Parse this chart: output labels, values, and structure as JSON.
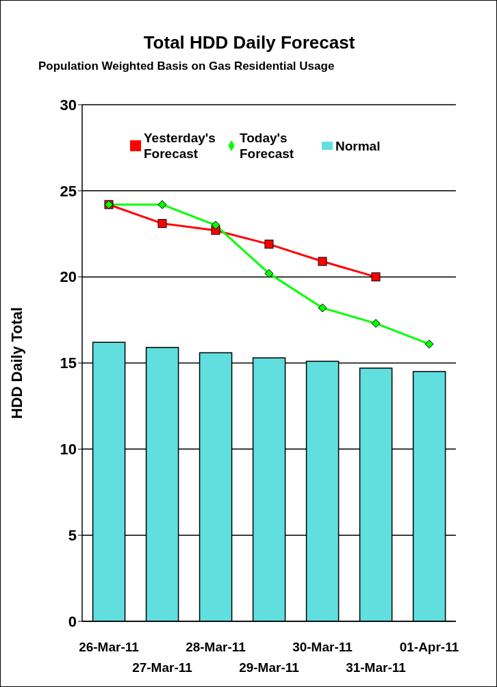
{
  "chart_data": {
    "type": "bar",
    "title": "Total HDD Daily Forecast",
    "subtitle": "Population Weighted Basis on Gas Residential Usage",
    "ylabel": "HDD Daily Total",
    "categories": [
      "26-Mar-11",
      "27-Mar-11",
      "28-Mar-11",
      "29-Mar-11",
      "30-Mar-11",
      "31-Mar-11",
      "01-Apr-11"
    ],
    "series": [
      {
        "name": "Yesterday's Forecast",
        "type": "line",
        "color": "#ff0000",
        "marker": "square",
        "values": [
          24.2,
          23.1,
          22.7,
          21.9,
          20.9,
          20.0,
          null
        ]
      },
      {
        "name": "Today's Forecast",
        "type": "line",
        "color": "#00ff00",
        "marker": "diamond",
        "values": [
          24.2,
          24.2,
          23.0,
          20.2,
          18.2,
          17.3,
          16.1
        ]
      },
      {
        "name": "Normal",
        "color": "#61dfdf",
        "values": [
          16.2,
          15.9,
          15.6,
          15.3,
          15.1,
          14.7,
          14.5
        ]
      }
    ],
    "ylim": [
      0,
      30
    ],
    "yticks": [
      0,
      5,
      10,
      15,
      20,
      25,
      30
    ],
    "grid": "y",
    "legend": "top"
  }
}
